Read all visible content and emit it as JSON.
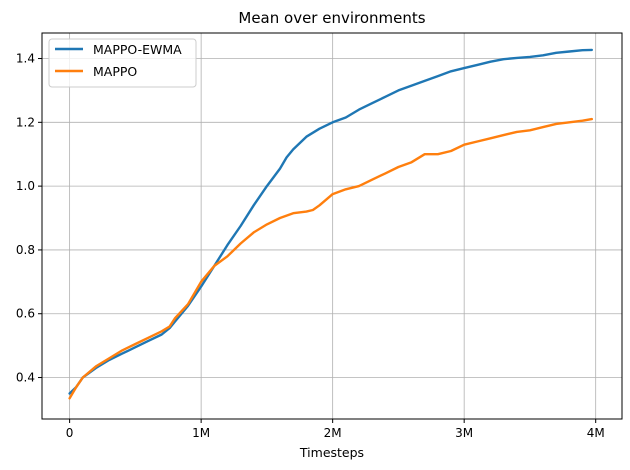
{
  "chart_data": {
    "type": "line",
    "title": "Mean over environments",
    "xlabel": "Timesteps",
    "ylabel": "",
    "xlim": [
      -210000,
      4200000
    ],
    "ylim": [
      0.27,
      1.48
    ],
    "x_ticks": [
      {
        "value": 0,
        "label": "0"
      },
      {
        "value": 1000000,
        "label": "1M"
      },
      {
        "value": 2000000,
        "label": "2M"
      },
      {
        "value": 3000000,
        "label": "3M"
      },
      {
        "value": 4000000,
        "label": "4M"
      }
    ],
    "y_ticks": [
      {
        "value": 0.4,
        "label": "0.4"
      },
      {
        "value": 0.6,
        "label": "0.6"
      },
      {
        "value": 0.8,
        "label": "0.8"
      },
      {
        "value": 1.0,
        "label": "1.0"
      },
      {
        "value": 1.2,
        "label": "1.2"
      },
      {
        "value": 1.4,
        "label": "1.4"
      }
    ],
    "grid": true,
    "legend_position": "top-left",
    "series": [
      {
        "name": "MAPPO-EWMA",
        "color": "#1f77b4",
        "points": [
          [
            0,
            0.35
          ],
          [
            50000,
            0.37
          ],
          [
            100000,
            0.4
          ],
          [
            200000,
            0.43
          ],
          [
            300000,
            0.455
          ],
          [
            400000,
            0.475
          ],
          [
            500000,
            0.495
          ],
          [
            600000,
            0.515
          ],
          [
            700000,
            0.535
          ],
          [
            760000,
            0.555
          ],
          [
            800000,
            0.575
          ],
          [
            900000,
            0.625
          ],
          [
            1000000,
            0.685
          ],
          [
            1100000,
            0.75
          ],
          [
            1200000,
            0.815
          ],
          [
            1300000,
            0.875
          ],
          [
            1400000,
            0.94
          ],
          [
            1500000,
            1.0
          ],
          [
            1600000,
            1.055
          ],
          [
            1650000,
            1.09
          ],
          [
            1700000,
            1.115
          ],
          [
            1800000,
            1.155
          ],
          [
            1900000,
            1.18
          ],
          [
            2000000,
            1.2
          ],
          [
            2100000,
            1.215
          ],
          [
            2200000,
            1.24
          ],
          [
            2300000,
            1.26
          ],
          [
            2400000,
            1.28
          ],
          [
            2500000,
            1.3
          ],
          [
            2600000,
            1.315
          ],
          [
            2700000,
            1.33
          ],
          [
            2800000,
            1.345
          ],
          [
            2900000,
            1.36
          ],
          [
            3000000,
            1.37
          ],
          [
            3100000,
            1.38
          ],
          [
            3200000,
            1.39
          ],
          [
            3300000,
            1.398
          ],
          [
            3400000,
            1.402
          ],
          [
            3500000,
            1.405
          ],
          [
            3600000,
            1.41
          ],
          [
            3700000,
            1.418
          ],
          [
            3800000,
            1.422
          ],
          [
            3900000,
            1.426
          ],
          [
            3970000,
            1.427
          ]
        ]
      },
      {
        "name": "MAPPO",
        "color": "#ff7f0e",
        "points": [
          [
            0,
            0.335
          ],
          [
            50000,
            0.37
          ],
          [
            100000,
            0.4
          ],
          [
            200000,
            0.435
          ],
          [
            300000,
            0.46
          ],
          [
            400000,
            0.485
          ],
          [
            500000,
            0.505
          ],
          [
            600000,
            0.525
          ],
          [
            700000,
            0.545
          ],
          [
            760000,
            0.56
          ],
          [
            800000,
            0.585
          ],
          [
            900000,
            0.63
          ],
          [
            1000000,
            0.7
          ],
          [
            1100000,
            0.75
          ],
          [
            1200000,
            0.78
          ],
          [
            1300000,
            0.82
          ],
          [
            1400000,
            0.855
          ],
          [
            1500000,
            0.88
          ],
          [
            1600000,
            0.9
          ],
          [
            1700000,
            0.915
          ],
          [
            1800000,
            0.92
          ],
          [
            1850000,
            0.925
          ],
          [
            1900000,
            0.94
          ],
          [
            2000000,
            0.975
          ],
          [
            2100000,
            0.99
          ],
          [
            2200000,
            1.0
          ],
          [
            2300000,
            1.02
          ],
          [
            2400000,
            1.04
          ],
          [
            2500000,
            1.06
          ],
          [
            2600000,
            1.075
          ],
          [
            2700000,
            1.1
          ],
          [
            2800000,
            1.1
          ],
          [
            2900000,
            1.11
          ],
          [
            3000000,
            1.13
          ],
          [
            3100000,
            1.14
          ],
          [
            3200000,
            1.15
          ],
          [
            3300000,
            1.16
          ],
          [
            3400000,
            1.17
          ],
          [
            3500000,
            1.175
          ],
          [
            3600000,
            1.185
          ],
          [
            3700000,
            1.195
          ],
          [
            3800000,
            1.2
          ],
          [
            3900000,
            1.205
          ],
          [
            3970000,
            1.21
          ]
        ]
      }
    ]
  }
}
